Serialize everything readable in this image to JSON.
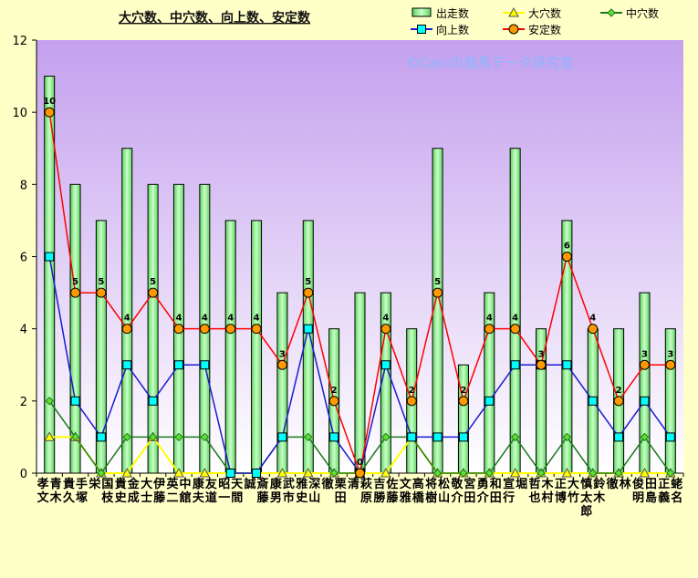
{
  "chart_data": {
    "type": "bar",
    "title": "大穴数、中穴数、向上数、安定数",
    "watermark": "©Caniの競馬データ研究室",
    "ylim": [
      0,
      12
    ],
    "yticks": [
      0,
      2,
      4,
      6,
      8,
      10,
      12
    ],
    "grid": false,
    "legend_position": "top-right",
    "categories": [
      "青木 孝文",
      "手塚 貴久",
      "国枝 栄",
      "金成 貴史",
      "伊藤 大士",
      "中舘 英二",
      "友道 康夫",
      "天間 昭一",
      "斎藤 誠",
      "武市 康男",
      "深山 雅史",
      "栗田 徹",
      "萩原 清",
      "佐藤 吉勝",
      "高橋 文雅",
      "松山 将樹",
      "宮田 敬介",
      "和田 勇介",
      "堀 宣行",
      "木村 哲也",
      "大竹 正博",
      "鈴木 慎太郎",
      "林 徹",
      "田島 俊明",
      "蛯名 正義"
    ],
    "series": [
      {
        "name": "出走数",
        "type": "bar",
        "color": "#99ff99",
        "values": [
          11,
          8,
          7,
          9,
          8,
          8,
          8,
          7,
          7,
          5,
          7,
          4,
          5,
          5,
          4,
          9,
          3,
          5,
          9,
          4,
          7,
          4,
          4,
          5,
          4
        ]
      },
      {
        "name": "大穴数",
        "type": "line",
        "color": "#ffff00",
        "marker": "triangle",
        "values": [
          1,
          1,
          0,
          0,
          1,
          0,
          0,
          0,
          0,
          0,
          0,
          0,
          0,
          0,
          1,
          0,
          0,
          0,
          0,
          0,
          0,
          0,
          0,
          0,
          0
        ]
      },
      {
        "name": "中穴数",
        "type": "line",
        "color": "#1a7a1a",
        "marker": "diamond",
        "values": [
          2,
          1,
          0,
          1,
          1,
          1,
          1,
          0,
          0,
          1,
          1,
          0,
          0,
          1,
          1,
          0,
          0,
          0,
          1,
          0,
          1,
          0,
          0,
          1,
          0
        ]
      },
      {
        "name": "向上数",
        "type": "line",
        "color": "#1a1ad0",
        "marker": "square",
        "values": [
          6,
          2,
          1,
          3,
          2,
          3,
          3,
          0,
          0,
          1,
          4,
          1,
          0,
          3,
          1,
          1,
          1,
          2,
          3,
          3,
          3,
          2,
          1,
          2,
          1
        ]
      },
      {
        "name": "安定数",
        "type": "line",
        "color": "#ff0000",
        "marker": "circle",
        "values": [
          10,
          5,
          5,
          4,
          5,
          4,
          4,
          4,
          4,
          3,
          5,
          2,
          0,
          4,
          2,
          5,
          2,
          4,
          4,
          3,
          6,
          4,
          2,
          3,
          3
        ]
      }
    ]
  }
}
